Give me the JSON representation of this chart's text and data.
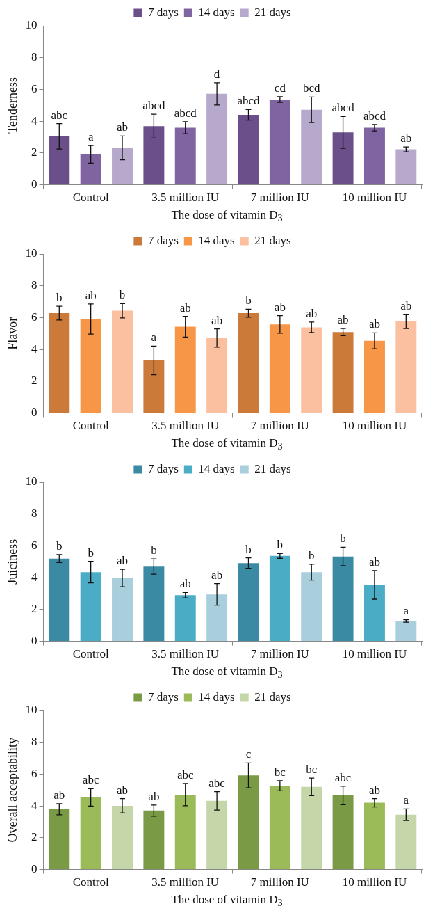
{
  "chart_data": [
    {
      "type": "bar",
      "ylabel": "Tenderness",
      "xlabel": "The dose of vitamin D$_{3}$",
      "categories": [
        "Control",
        "3.5 million IU",
        "7 million IU",
        "10 million IU"
      ],
      "ylim": [
        0,
        10
      ],
      "yticks": [
        0,
        2,
        4,
        6,
        8,
        10
      ],
      "grid": false,
      "legend": "top",
      "series": [
        {
          "name": "7 days",
          "color": "#6a4f8a",
          "values": [
            3.05,
            3.69,
            4.4,
            3.3
          ],
          "errors": [
            0.8,
            0.75,
            0.33,
            1.0
          ],
          "value_labels": [
            "abc",
            "abcd",
            "abcd",
            "abcd"
          ]
        },
        {
          "name": "14 days",
          "color": "#8064a2",
          "values": [
            1.92,
            3.59,
            5.36,
            3.59
          ],
          "errors": [
            0.55,
            0.38,
            0.18,
            0.2
          ],
          "value_labels": [
            "a",
            "abcd",
            "cd",
            "abcd"
          ]
        },
        {
          "name": "21 days",
          "color": "#b7a9cb",
          "values": [
            2.32,
            5.72,
            4.72,
            2.23
          ],
          "errors": [
            0.75,
            0.7,
            0.8,
            0.15
          ],
          "value_labels": [
            "ab",
            "d",
            "bcd",
            "ab"
          ]
        }
      ]
    },
    {
      "type": "bar",
      "ylabel": "Flavor",
      "xlabel": "The dose of vitamin D$_{3}$",
      "categories": [
        "Control",
        "3.5 million IU",
        "7 million IU",
        "10 million IU"
      ],
      "ylim": [
        0,
        10
      ],
      "yticks": [
        0,
        2,
        4,
        6,
        8,
        10
      ],
      "grid": false,
      "legend": "top",
      "series": [
        {
          "name": "7 days",
          "color": "#cc7a3a",
          "values": [
            6.28,
            3.31,
            6.28,
            5.09
          ],
          "errors": [
            0.43,
            0.9,
            0.25,
            0.22
          ],
          "value_labels": [
            "b",
            "a",
            "b",
            "ab"
          ]
        },
        {
          "name": "14 days",
          "color": "#f79646",
          "values": [
            5.91,
            5.43,
            5.57,
            4.54
          ],
          "errors": [
            0.95,
            0.65,
            0.55,
            0.5
          ],
          "value_labels": [
            "ab",
            "ab",
            "ab",
            "ab"
          ]
        },
        {
          "name": "21 days",
          "color": "#fac0a0",
          "values": [
            6.43,
            4.72,
            5.39,
            5.76
          ],
          "errors": [
            0.45,
            0.57,
            0.33,
            0.45
          ],
          "value_labels": [
            "b",
            "ab",
            "ab",
            "ab"
          ]
        }
      ]
    },
    {
      "type": "bar",
      "ylabel": "Juiciness",
      "xlabel": "The dose of vitamin D$_{3}$",
      "categories": [
        "Control",
        "3.5 million IU",
        "7 million IU",
        "10 million IU"
      ],
      "ylim": [
        0,
        10
      ],
      "yticks": [
        0,
        2,
        4,
        6,
        8,
        10
      ],
      "grid": false,
      "legend": "top",
      "series": [
        {
          "name": "7 days",
          "color": "#3b8aa3",
          "values": [
            5.2,
            4.7,
            4.92,
            5.33
          ],
          "errors": [
            0.25,
            0.48,
            0.33,
            0.58
          ],
          "value_labels": [
            "b",
            "b",
            "b",
            "b"
          ]
        },
        {
          "name": "14 days",
          "color": "#4bacc6",
          "values": [
            4.35,
            2.9,
            5.37,
            3.55
          ],
          "errors": [
            0.68,
            0.17,
            0.15,
            0.9
          ],
          "value_labels": [
            "b",
            "ab",
            "b",
            "ab"
          ]
        },
        {
          "name": "21 days",
          "color": "#a9cfdd",
          "values": [
            3.98,
            2.95,
            4.35,
            1.28
          ],
          "errors": [
            0.55,
            0.68,
            0.5,
            0.08
          ],
          "value_labels": [
            "ab",
            "ab",
            "b",
            "a"
          ]
        }
      ]
    },
    {
      "type": "bar",
      "ylabel": "Overall acceptability",
      "xlabel": "The dose of vitamin D$_{3}$",
      "categories": [
        "Control",
        "3.5 million IU",
        "7 million IU",
        "10 million IU"
      ],
      "ylim": [
        0,
        10
      ],
      "yticks": [
        0,
        2,
        4,
        6,
        8,
        10
      ],
      "grid": false,
      "legend": "top",
      "series": [
        {
          "name": "7 days",
          "color": "#7a9a45",
          "values": [
            3.79,
            3.71,
            5.92,
            4.66
          ],
          "errors": [
            0.35,
            0.35,
            0.78,
            0.58
          ],
          "value_labels": [
            "ab",
            "ab",
            "c",
            "abc"
          ]
        },
        {
          "name": "14 days",
          "color": "#9bbb59",
          "values": [
            4.54,
            4.71,
            5.27,
            4.2
          ],
          "errors": [
            0.55,
            0.7,
            0.32,
            0.26
          ],
          "value_labels": [
            "abc",
            "abc",
            "bc",
            "ab"
          ]
        },
        {
          "name": "21 days",
          "color": "#c5d6a8",
          "values": [
            4.01,
            4.32,
            5.2,
            3.45
          ],
          "errors": [
            0.45,
            0.58,
            0.55,
            0.37
          ],
          "value_labels": [
            "ab",
            "abc",
            "bc",
            "a"
          ]
        }
      ]
    }
  ]
}
